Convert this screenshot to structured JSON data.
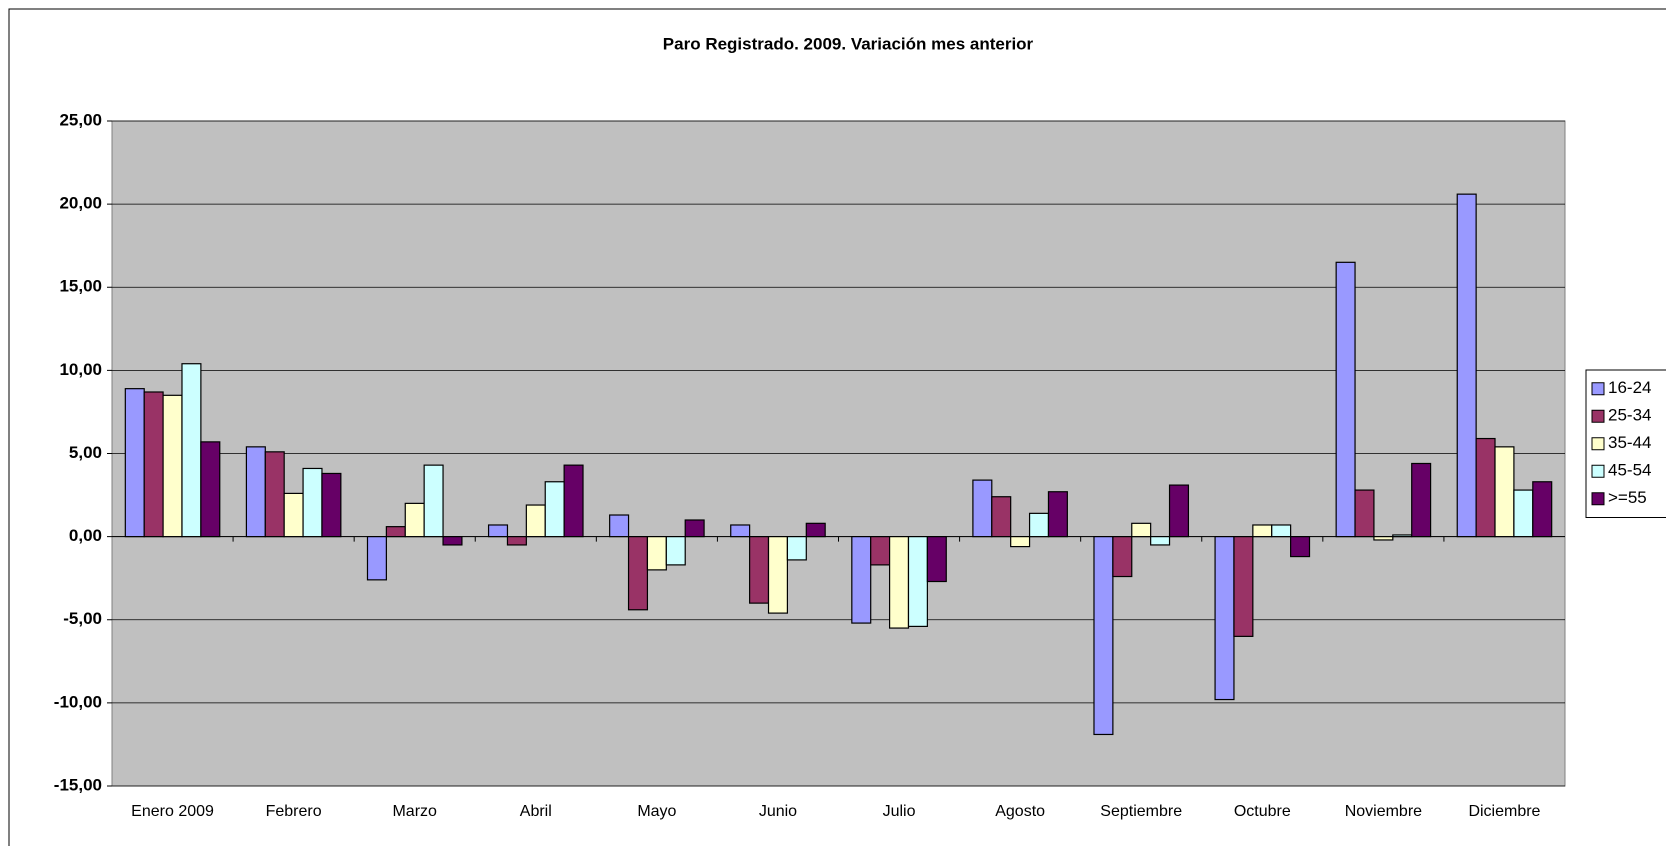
{
  "chart_data": {
    "type": "bar",
    "title": "Paro Registrado. 2009. Variación mes anterior",
    "categories": [
      "Enero 2009",
      "Febrero",
      "Marzo",
      "Abril",
      "Mayo",
      "Junio",
      "Julio",
      "Agosto",
      "Septiembre",
      "Octubre",
      "Noviembre",
      "Diciembre"
    ],
    "series": [
      {
        "name": "16-24",
        "color": "#9999ff",
        "values": [
          8.9,
          5.4,
          -2.6,
          0.7,
          1.3,
          0.7,
          -5.2,
          3.4,
          -11.9,
          -9.8,
          16.5,
          20.6
        ]
      },
      {
        "name": "25-34",
        "color": "#993366",
        "values": [
          8.7,
          5.1,
          0.6,
          -0.5,
          -4.4,
          -4.0,
          -1.7,
          2.4,
          -2.4,
          -6.0,
          2.8,
          5.9
        ]
      },
      {
        "name": "35-44",
        "color": "#ffffcc",
        "values": [
          8.5,
          2.6,
          2.0,
          1.9,
          -2.0,
          -4.6,
          -5.5,
          -0.6,
          0.8,
          0.7,
          -0.2,
          5.4
        ]
      },
      {
        "name": "45-54",
        "color": "#ccffff",
        "values": [
          10.4,
          4.1,
          4.3,
          3.3,
          -1.7,
          -1.4,
          -5.4,
          1.4,
          -0.5,
          0.7,
          0.1,
          2.8
        ]
      },
      {
        "name": ">=55",
        "color": "#660066",
        "values": [
          5.7,
          3.8,
          -0.5,
          4.3,
          1.0,
          0.8,
          -2.7,
          2.7,
          3.1,
          -1.2,
          4.4,
          3.3
        ]
      }
    ],
    "ylim": [
      -15,
      25
    ],
    "yticks": [
      {
        "value": -15,
        "label": "-15,00"
      },
      {
        "value": -10,
        "label": "-10,00"
      },
      {
        "value": -5,
        "label": "-5,00"
      },
      {
        "value": 0,
        "label": "0,00"
      },
      {
        "value": 5,
        "label": "5,00"
      },
      {
        "value": 10,
        "label": "10,00"
      },
      {
        "value": 15,
        "label": "15,00"
      },
      {
        "value": 20,
        "label": "20,00"
      },
      {
        "value": 25,
        "label": "25,00"
      }
    ],
    "grid": true,
    "plot_background": "#c0c0c0",
    "legend": "right"
  }
}
